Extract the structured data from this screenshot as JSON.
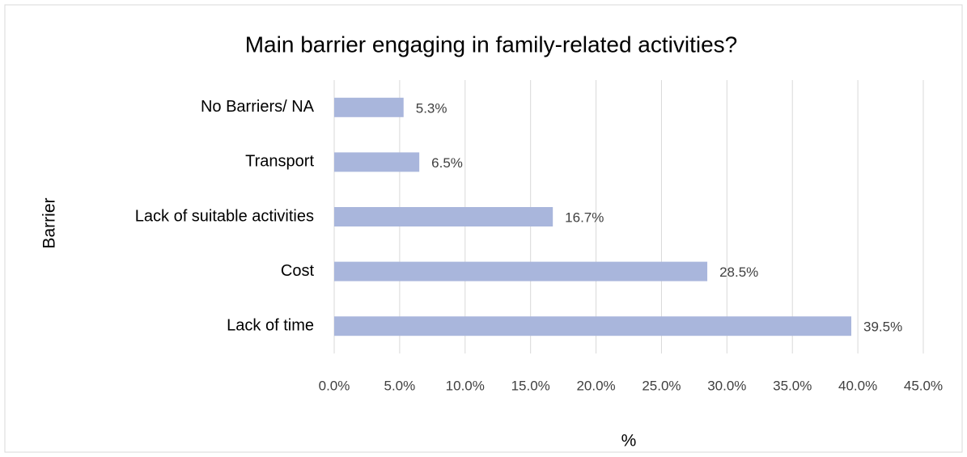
{
  "chart_data": {
    "type": "bar",
    "orientation": "horizontal",
    "title": "Main barrier engaging in family-related activities?",
    "x_label": "%",
    "y_label": "Barrier",
    "categories": [
      "No Barriers/ NA",
      "Transport",
      "Lack of suitable activities",
      "Cost",
      "Lack of time"
    ],
    "values": [
      5.3,
      6.5,
      16.7,
      28.5,
      39.5
    ],
    "value_labels": [
      "5.3%",
      "6.5%",
      "16.7%",
      "28.5%",
      "39.5%"
    ],
    "color": "#a9b6dc",
    "xlim": [
      0,
      45
    ],
    "xticks": [
      {
        "value": 0,
        "label": "0.0%"
      },
      {
        "value": 5,
        "label": "5.0%"
      },
      {
        "value": 10,
        "label": "10.0%"
      },
      {
        "value": 15,
        "label": "15.0%"
      },
      {
        "value": 20,
        "label": "20.0%"
      },
      {
        "value": 25,
        "label": "25.0%"
      },
      {
        "value": 30,
        "label": "30.0%"
      },
      {
        "value": 35,
        "label": "35.0%"
      },
      {
        "value": 40,
        "label": "40.0%"
      },
      {
        "value": 45,
        "label": "45.0%"
      }
    ],
    "grid": true
  }
}
